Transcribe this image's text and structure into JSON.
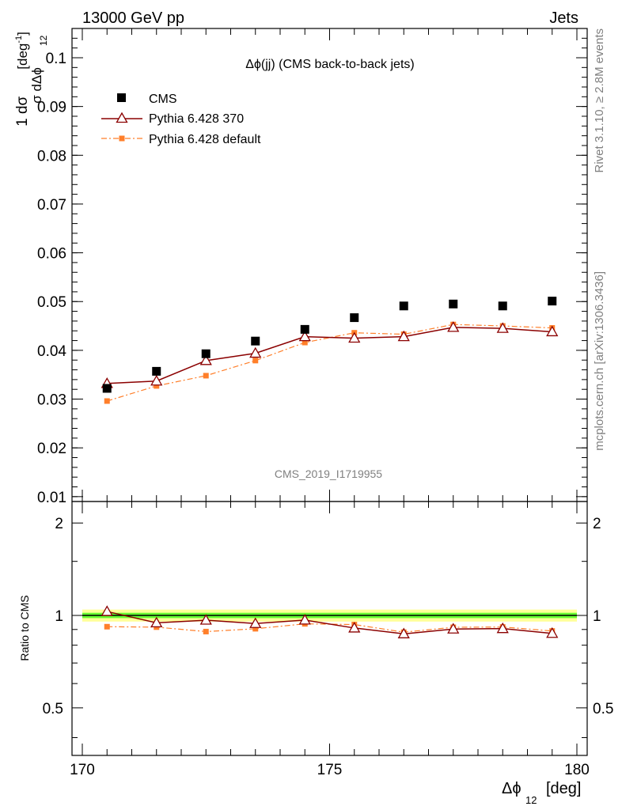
{
  "header": {
    "left_title": "13000 GeV pp",
    "right_title": "Jets"
  },
  "side_labels": {
    "rivet": "Rivet 3.1.10, ≥ 2.8M events",
    "mcplots": "mcplots.cern.ch [arXiv:1306.3436]"
  },
  "chart_data": {
    "type": "scatter",
    "title": "Δϕ(jj) (CMS back-to-back jets)",
    "analysis_id": "CMS_2019_I1719955",
    "xlabel_main": "Δϕ",
    "xlabel_sub": "12",
    "xlabel_unit": "[deg]",
    "ylabel": "1/σ dσ/dΔϕ_12 [deg^-1]",
    "ratio_ylabel": "Ratio to CMS",
    "xlim": [
      170,
      180
    ],
    "ylim": [
      0.009,
      0.106
    ],
    "ratio_ylim": [
      0.35,
      2.35
    ],
    "x_ticks": [
      "170",
      "175",
      "180"
    ],
    "y_ticks": [
      "0.01",
      "0.02",
      "0.03",
      "0.04",
      "0.05",
      "0.06",
      "0.07",
      "0.08",
      "0.09",
      "0.1"
    ],
    "ratio_ticks": [
      "0.5",
      "1",
      "2"
    ],
    "legend_position": "top-left",
    "x": [
      170.5,
      171.5,
      172.5,
      173.5,
      174.5,
      175.5,
      176.5,
      177.5,
      178.5,
      179.5
    ],
    "series": [
      {
        "name": "CMS",
        "style": "data-squares",
        "color": "#000000",
        "values": [
          0.0322,
          0.0357,
          0.0393,
          0.0419,
          0.0443,
          0.0467,
          0.0491,
          0.0495,
          0.0491,
          0.0501
        ],
        "ratio": [
          1.0,
          1.0,
          1.0,
          1.0,
          1.0,
          1.0,
          1.0,
          1.0,
          1.0,
          1.0
        ]
      },
      {
        "name": "Pythia 6.428 370",
        "style": "open-triangles-solid",
        "color": "#8b0000",
        "values": [
          0.0332,
          0.0337,
          0.0379,
          0.0394,
          0.0428,
          0.0425,
          0.0428,
          0.0447,
          0.0445,
          0.0438
        ],
        "ratio": [
          1.03,
          0.946,
          0.965,
          0.941,
          0.966,
          0.91,
          0.871,
          0.903,
          0.906,
          0.874
        ]
      },
      {
        "name": "Pythia 6.428 default",
        "style": "filled-squares-dashdot",
        "color": "#ff7f2a",
        "values": [
          0.0296,
          0.0327,
          0.0348,
          0.0379,
          0.0416,
          0.0436,
          0.0433,
          0.0453,
          0.045,
          0.0446
        ],
        "ratio": [
          0.919,
          0.916,
          0.886,
          0.905,
          0.939,
          0.934,
          0.882,
          0.915,
          0.917,
          0.89
        ]
      }
    ],
    "ratio_band": {
      "color_inner": "#66ff33",
      "color_outer": "#ffff99",
      "inner": 0.02,
      "outer": 0.045
    }
  }
}
